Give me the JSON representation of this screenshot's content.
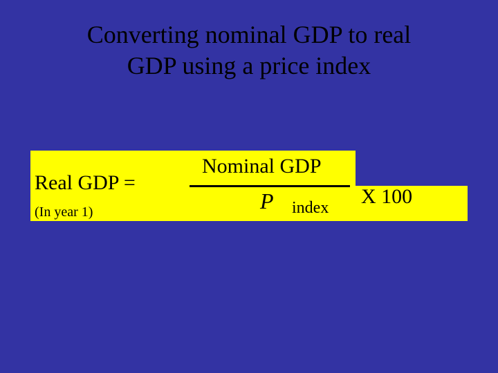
{
  "slide": {
    "background_color": "#3333a3",
    "title_line1": "Converting nominal GDP to real",
    "title_line2": "GDP using a price index",
    "title_color": "#000000",
    "title_fontsize": 36
  },
  "formula": {
    "highlight_color": "#ffff00",
    "text_color": "#000000",
    "real_gdp_label": "Real GDP =",
    "in_year_label": "(In year 1)",
    "numerator": "Nominal GDP",
    "denominator_symbol": "P",
    "index_label": "index",
    "multiplier_label": "X 100",
    "main_fontsize": 30,
    "subscript_fontsize": 20,
    "index_fontsize": 24,
    "p_fontsize": 32,
    "fraction_line_width": 232,
    "fraction_line_thickness": 3
  }
}
